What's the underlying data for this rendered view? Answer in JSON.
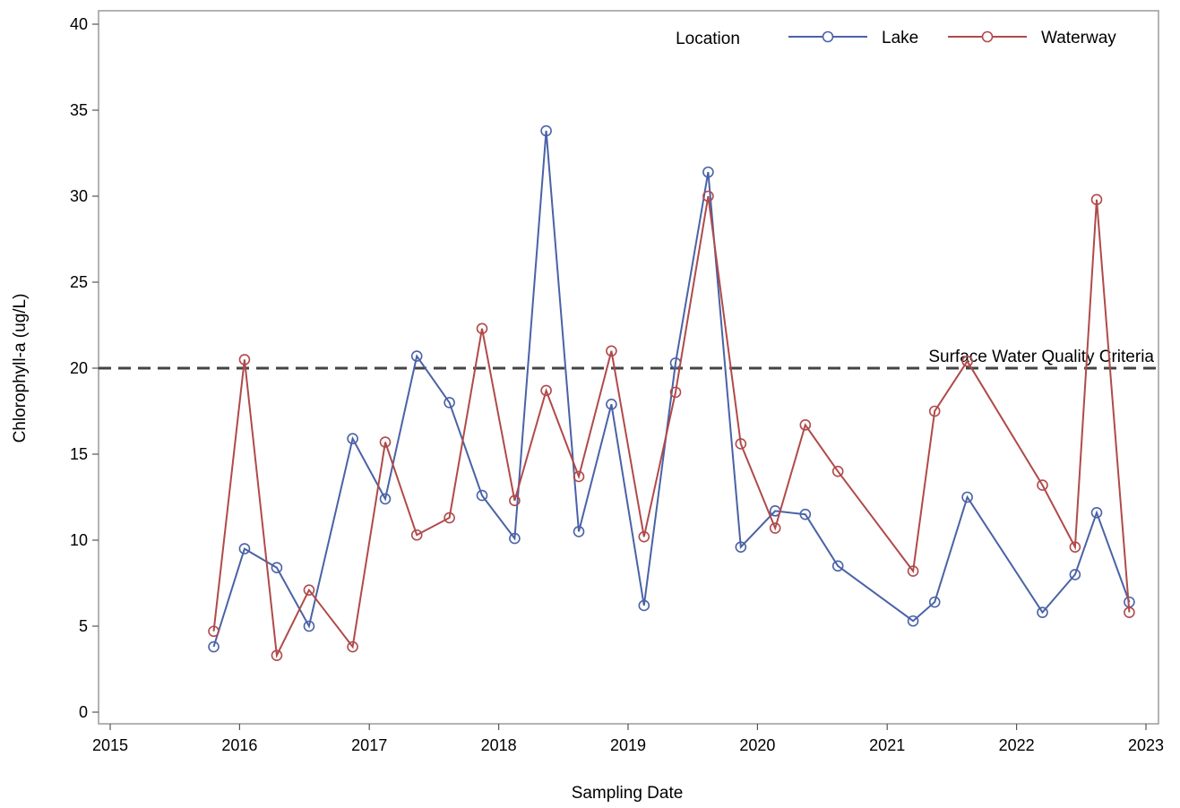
{
  "chart_data": {
    "type": "line",
    "title": "",
    "xlabel": "Sampling Date",
    "ylabel": "Chlorophyll-a (ug/L)",
    "xlim": [
      "2015-01-01",
      "2023-01-01"
    ],
    "ylim": [
      0,
      40
    ],
    "x_ticks": [
      "2015",
      "2016",
      "2017",
      "2018",
      "2019",
      "2020",
      "2021",
      "2022",
      "2023"
    ],
    "y_ticks": [
      "0",
      "5",
      "10",
      "15",
      "20",
      "25",
      "30",
      "35",
      "40"
    ],
    "grid": false,
    "legend": {
      "title": "Location",
      "position": "top-right"
    },
    "reference_line": {
      "label": "Surface Water Quality Criteria",
      "y": 20,
      "style": "dashed",
      "color": "#444444"
    },
    "series": [
      {
        "name": "Lake",
        "color": "#4a62a6",
        "points": [
          [
            "2015-10-20",
            3.8
          ],
          [
            "2016-01-15",
            9.5
          ],
          [
            "2016-04-15",
            8.4
          ],
          [
            "2016-07-15",
            5.0
          ],
          [
            "2016-11-15",
            15.9
          ],
          [
            "2017-02-15",
            12.4
          ],
          [
            "2017-05-15",
            20.7
          ],
          [
            "2017-08-15",
            18.0
          ],
          [
            "2017-11-15",
            12.6
          ],
          [
            "2018-02-15",
            10.1
          ],
          [
            "2018-05-15",
            33.8
          ],
          [
            "2018-08-15",
            10.5
          ],
          [
            "2018-11-15",
            17.9
          ],
          [
            "2019-02-15",
            6.2
          ],
          [
            "2019-05-15",
            20.3
          ],
          [
            "2019-08-15",
            31.4
          ],
          [
            "2019-11-15",
            9.6
          ],
          [
            "2020-02-20",
            11.7
          ],
          [
            "2020-05-15",
            11.5
          ],
          [
            "2020-08-15",
            8.5
          ],
          [
            "2021-03-15",
            5.3
          ],
          [
            "2021-05-15",
            6.4
          ],
          [
            "2021-08-15",
            12.5
          ],
          [
            "2022-03-15",
            5.8
          ],
          [
            "2022-06-15",
            8.0
          ],
          [
            "2022-08-15",
            11.6
          ],
          [
            "2022-11-15",
            6.4
          ]
        ]
      },
      {
        "name": "Waterway",
        "color": "#b04a4a",
        "points": [
          [
            "2015-10-20",
            4.7
          ],
          [
            "2016-01-15",
            20.5
          ],
          [
            "2016-04-15",
            3.3
          ],
          [
            "2016-07-15",
            7.1
          ],
          [
            "2016-11-15",
            3.8
          ],
          [
            "2017-02-15",
            15.7
          ],
          [
            "2017-05-15",
            10.3
          ],
          [
            "2017-08-15",
            11.3
          ],
          [
            "2017-11-15",
            22.3
          ],
          [
            "2018-02-15",
            12.3
          ],
          [
            "2018-05-15",
            18.7
          ],
          [
            "2018-08-15",
            13.7
          ],
          [
            "2018-11-15",
            21.0
          ],
          [
            "2019-02-15",
            10.2
          ],
          [
            "2019-05-15",
            18.6
          ],
          [
            "2019-08-15",
            30.0
          ],
          [
            "2019-11-15",
            15.6
          ],
          [
            "2020-02-20",
            10.7
          ],
          [
            "2020-05-15",
            16.7
          ],
          [
            "2020-08-15",
            14.0
          ],
          [
            "2021-03-15",
            8.2
          ],
          [
            "2021-05-15",
            17.5
          ],
          [
            "2021-08-15",
            20.4
          ],
          [
            "2022-03-15",
            13.2
          ],
          [
            "2022-06-15",
            9.6
          ],
          [
            "2022-08-15",
            29.8
          ],
          [
            "2022-11-15",
            5.8
          ]
        ]
      }
    ]
  }
}
